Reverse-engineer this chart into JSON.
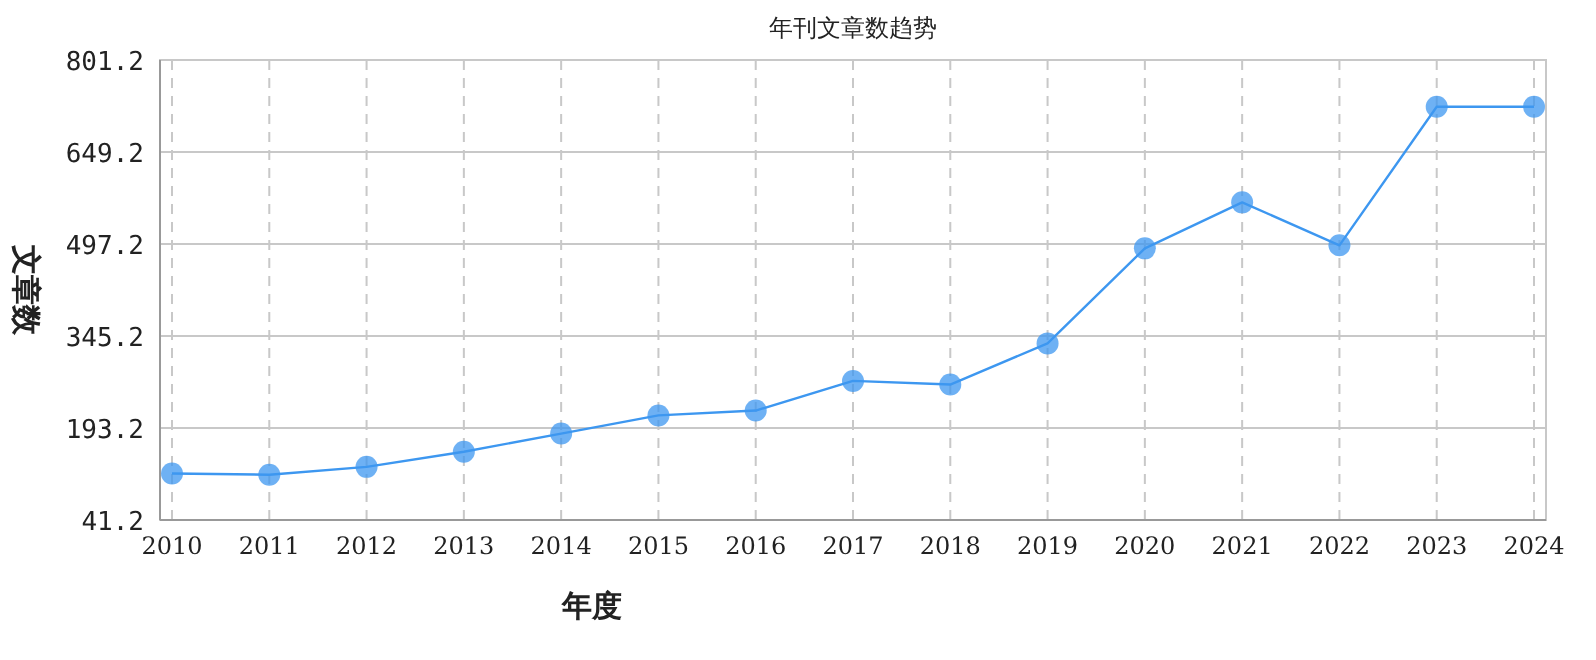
{
  "chart_data": {
    "type": "line",
    "title": "年刊文章数趋势",
    "xlabel": "年度",
    "ylabel": "文章数",
    "categories": [
      "2010",
      "2011",
      "2012",
      "2013",
      "2014",
      "2015",
      "2016",
      "2017",
      "2018",
      "2019",
      "2020",
      "2021",
      "2022",
      "2023",
      "2024"
    ],
    "series": [
      {
        "color": "#3d97f0",
        "values": [
          118,
          116,
          129,
          154,
          184,
          214,
          222,
          271,
          265,
          333,
          490,
          566,
          495,
          724,
          724
        ]
      }
    ],
    "ylim": [
      41.2,
      801.2
    ],
    "yticks": [
      {
        "value": 41.2,
        "label": "41.2"
      },
      {
        "value": 193.2,
        "label": "193.2"
      },
      {
        "value": 345.2,
        "label": "345.2"
      },
      {
        "value": 497.2,
        "label": "497.2"
      },
      {
        "value": 649.2,
        "label": "649.2"
      },
      {
        "value": 801.2,
        "label": "801.2"
      }
    ],
    "grid": true,
    "marker": "circle",
    "line_style": "solid"
  }
}
